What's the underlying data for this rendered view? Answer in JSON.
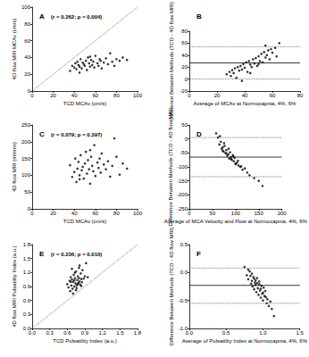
{
  "chart_data": [
    {
      "type": "scatter",
      "title": "A",
      "annotation": "(r = 0.262; p = 0.004)",
      "x_label": "TCD MCAv (cm/s)",
      "y_label": "4D flow MRI MCAv (cm/s)",
      "color": "#000000",
      "marker": "circle",
      "xlim": [
        0,
        100
      ],
      "ylim": [
        0,
        100
      ],
      "xticks": [
        0,
        20,
        40,
        60,
        80,
        100
      ],
      "yticks": [
        0,
        20,
        40,
        60,
        80,
        100
      ],
      "x": [
        36,
        38,
        40,
        41,
        42,
        43,
        44,
        45,
        46,
        47,
        48,
        49,
        50,
        51,
        52,
        53,
        54,
        55,
        56,
        57,
        58,
        59,
        60,
        62,
        63,
        64,
        65,
        66,
        68,
        70,
        72,
        74,
        76,
        78,
        80,
        83,
        86,
        90,
        45,
        55
      ],
      "y": [
        24,
        30,
        28,
        33,
        26,
        35,
        31,
        29,
        38,
        27,
        34,
        32,
        30,
        36,
        25,
        40,
        33,
        29,
        37,
        31,
        35,
        28,
        42,
        33,
        30,
        38,
        36,
        27,
        34,
        39,
        32,
        45,
        35,
        30,
        38,
        36,
        40,
        37,
        22,
        41
      ],
      "lines": [
        {
          "x": [
            0,
            100
          ],
          "y": [
            0,
            100
          ],
          "line_style": "dotted"
        }
      ]
    },
    {
      "type": "scatter",
      "title": "B",
      "x_label": "Average of MCAv at Normocapnia, 4%, 6%",
      "y_label": "Difference Between Methods (TCD - 4D flow MRI)",
      "color": "#000000",
      "marker": "circle",
      "xlim": [
        0,
        80
      ],
      "ylim": [
        -20,
        80
      ],
      "xticks": [
        0,
        20,
        40,
        60,
        80
      ],
      "yticks": [
        -20,
        0,
        20,
        40,
        60,
        80
      ],
      "x": [
        27,
        29,
        30,
        31,
        32,
        33,
        34,
        35,
        36,
        37,
        38,
        39,
        40,
        41,
        42,
        43,
        44,
        45,
        46,
        47,
        48,
        49,
        50,
        51,
        52,
        53,
        54,
        55,
        56,
        57,
        58,
        59,
        60,
        62,
        63,
        65,
        38,
        44,
        50,
        55
      ],
      "y": [
        8,
        12,
        5,
        15,
        10,
        18,
        2,
        20,
        14,
        22,
        16,
        25,
        19,
        28,
        12,
        30,
        24,
        20,
        33,
        26,
        35,
        22,
        38,
        30,
        42,
        28,
        45,
        36,
        40,
        48,
        33,
        50,
        44,
        52,
        38,
        60,
        -3,
        10,
        25,
        56
      ],
      "lines": [
        {
          "x": [
            0,
            80
          ],
          "y": [
            27,
            27
          ],
          "line_style": "solid"
        },
        {
          "x": [
            0,
            80
          ],
          "y": [
            54,
            54
          ],
          "line_style": "dotted"
        },
        {
          "x": [
            0,
            80
          ],
          "y": [
            0,
            0
          ],
          "line_style": "dotted"
        }
      ]
    },
    {
      "type": "scatter",
      "title": "C",
      "annotation": "(r = 0.079; p = 0.397)",
      "x_label": "TCD MCAv (cm/s)",
      "y_label": "4D flow MRI (ml/min)",
      "color": "#000000",
      "marker": "circle",
      "xlim": [
        0,
        100
      ],
      "ylim": [
        0,
        250
      ],
      "xticks": [
        0,
        20,
        40,
        60,
        80,
        100
      ],
      "yticks": [
        0,
        50,
        100,
        150,
        200,
        250
      ],
      "x": [
        36,
        38,
        40,
        41,
        42,
        43,
        44,
        45,
        46,
        47,
        48,
        49,
        50,
        51,
        52,
        53,
        54,
        55,
        56,
        57,
        58,
        59,
        60,
        62,
        63,
        64,
        65,
        66,
        68,
        70,
        72,
        74,
        76,
        78,
        80,
        83,
        86,
        90,
        45,
        55
      ],
      "y": [
        130,
        95,
        110,
        150,
        80,
        120,
        140,
        100,
        160,
        115,
        125,
        90,
        135,
        170,
        105,
        145,
        118,
        75,
        155,
        128,
        112,
        190,
        98,
        138,
        122,
        150,
        108,
        165,
        132,
        118,
        142,
        96,
        128,
        210,
        155,
        102,
        135,
        120,
        88,
        175
      ]
    },
    {
      "type": "scatter",
      "title": "D",
      "x_label": "Average of MCA Velocity and Flow at Normocapnia, 4%, 6%",
      "y_label": "Difference Between Methods (TCD - 4D flow MRI)",
      "color": "#000000",
      "marker": "circle",
      "xlim": [
        0,
        200
      ],
      "ylim": [
        -250,
        50
      ],
      "xticks": [
        0,
        50,
        100,
        150,
        200
      ],
      "yticks": [
        -250,
        -200,
        -150,
        -100,
        -50,
        0,
        50
      ],
      "x": [
        58,
        62,
        65,
        68,
        70,
        72,
        74,
        76,
        78,
        80,
        82,
        84,
        86,
        88,
        90,
        92,
        94,
        96,
        98,
        100,
        103,
        106,
        110,
        115,
        120,
        125,
        130,
        140,
        150,
        158,
        66,
        75,
        85,
        95,
        105,
        72,
        80,
        90,
        100,
        112
      ],
      "y": [
        20,
        5,
        -20,
        -10,
        -35,
        -30,
        -45,
        -25,
        -50,
        -40,
        -60,
        -55,
        -70,
        -48,
        -65,
        -75,
        -58,
        -80,
        -68,
        -90,
        -85,
        -95,
        -100,
        -110,
        -105,
        -120,
        -130,
        -140,
        -150,
        -168,
        10,
        -15,
        -35,
        -62,
        -78,
        -42,
        -52,
        -72,
        -88,
        -98
      ],
      "lines": [
        {
          "x": [
            0,
            200
          ],
          "y": [
            -65,
            -65
          ],
          "line_style": "solid"
        },
        {
          "x": [
            0,
            200
          ],
          "y": [
            5,
            5
          ],
          "line_style": "dotted"
        },
        {
          "x": [
            0,
            200
          ],
          "y": [
            -135,
            -135
          ],
          "line_style": "dotted"
        }
      ]
    },
    {
      "type": "scatter",
      "title": "E",
      "annotation": "(r = 0.236; p = 0.010)",
      "x_label": "TCD Pulsatility Index (a.u.)",
      "y_label": "4D flow MRI Pulsatility Index (a.u.)",
      "color": "#000000",
      "marker": "circle",
      "xlim": [
        0,
        1.8
      ],
      "ylim": [
        0,
        1.8
      ],
      "xticks": [
        {
          "value": 0,
          "label": "0.0"
        },
        0.3,
        0.6,
        0.9,
        1.2,
        1.5,
        1.8
      ],
      "yticks": [
        {
          "value": 0,
          "label": "0.0"
        },
        0.3,
        0.6,
        0.9,
        1.2,
        1.5,
        1.8
      ],
      "x": [
        0.6,
        0.62,
        0.64,
        0.65,
        0.66,
        0.67,
        0.68,
        0.69,
        0.7,
        0.71,
        0.72,
        0.73,
        0.74,
        0.75,
        0.76,
        0.77,
        0.78,
        0.79,
        0.8,
        0.81,
        0.82,
        0.83,
        0.84,
        0.85,
        0.86,
        0.88,
        0.9,
        0.92,
        0.95,
        0.7,
        0.73,
        0.76,
        0.78,
        0.81,
        0.66,
        0.72,
        0.84,
        0.68,
        0.75,
        0.8
      ],
      "y": [
        0.95,
        0.88,
        1.02,
        0.8,
        1.1,
        0.92,
        1.05,
        0.85,
        1.0,
        1.15,
        0.9,
        1.08,
        0.97,
        1.22,
        0.93,
        1.04,
        1.12,
        0.98,
        1.3,
        1.01,
        0.94,
        1.18,
        1.06,
        0.99,
        1.25,
        1.07,
        1.12,
        1.4,
        1.1,
        0.75,
        1.2,
        0.87,
        0.95,
        1.35,
        1.0,
        1.03,
        0.91,
        1.28,
        0.82,
        1.08
      ],
      "lines": [
        {
          "x": [
            0,
            1.8
          ],
          "y": [
            0,
            1.8
          ],
          "line_style": "dotted"
        }
      ]
    },
    {
      "type": "scatter",
      "title": "F",
      "x_label": "Average of Pulsatility Index at Normocapnia, 4%, 6%",
      "y_label": "Difference Between Methods (TCD - 4D flow MRI)",
      "color": "#000000",
      "marker": "circle",
      "xlim": [
        0,
        1.5
      ],
      "ylim": [
        -1,
        0.5
      ],
      "xticks": [
        {
          "value": 0,
          "label": "0.0"
        },
        0.5,
        {
          "value": 1,
          "label": "1.0"
        },
        1.5
      ],
      "yticks": [
        {
          "value": -1,
          "label": "-1.0"
        },
        -0.5,
        {
          "value": 0,
          "label": "0.0"
        },
        0.5
      ],
      "x": [
        0.75,
        0.78,
        0.8,
        0.82,
        0.84,
        0.85,
        0.86,
        0.87,
        0.88,
        0.89,
        0.9,
        0.91,
        0.92,
        0.93,
        0.94,
        0.95,
        0.96,
        0.97,
        0.98,
        0.99,
        1.0,
        1.01,
        1.02,
        1.03,
        1.05,
        1.06,
        1.08,
        1.1,
        1.12,
        1.15,
        0.8,
        0.85,
        0.9,
        0.95,
        1.0,
        0.88,
        0.92,
        0.97,
        1.04,
        0.83
      ],
      "y": [
        0.1,
        -0.05,
        -0.12,
        0.02,
        -0.2,
        -0.15,
        -0.25,
        -0.08,
        -0.3,
        -0.18,
        -0.22,
        -0.35,
        -0.1,
        -0.28,
        -0.4,
        -0.16,
        -0.32,
        -0.45,
        -0.24,
        -0.38,
        -0.5,
        -0.27,
        -0.42,
        -0.33,
        -0.55,
        -0.48,
        -0.6,
        -0.52,
        -0.65,
        -0.78,
        0.05,
        -0.02,
        -0.14,
        -0.21,
        -0.36,
        -0.11,
        -0.19,
        -0.29,
        -0.44,
        -0.06
      ],
      "lines": [
        {
          "x": [
            0,
            1.5
          ],
          "y": [
            -0.23,
            -0.23
          ],
          "line_style": "solid"
        },
        {
          "x": [
            0,
            1.5
          ],
          "y": [
            0.08,
            0.08
          ],
          "line_style": "dotted"
        },
        {
          "x": [
            0,
            1.5
          ],
          "y": [
            -0.55,
            -0.55
          ],
          "line_style": "dotted"
        }
      ]
    }
  ]
}
